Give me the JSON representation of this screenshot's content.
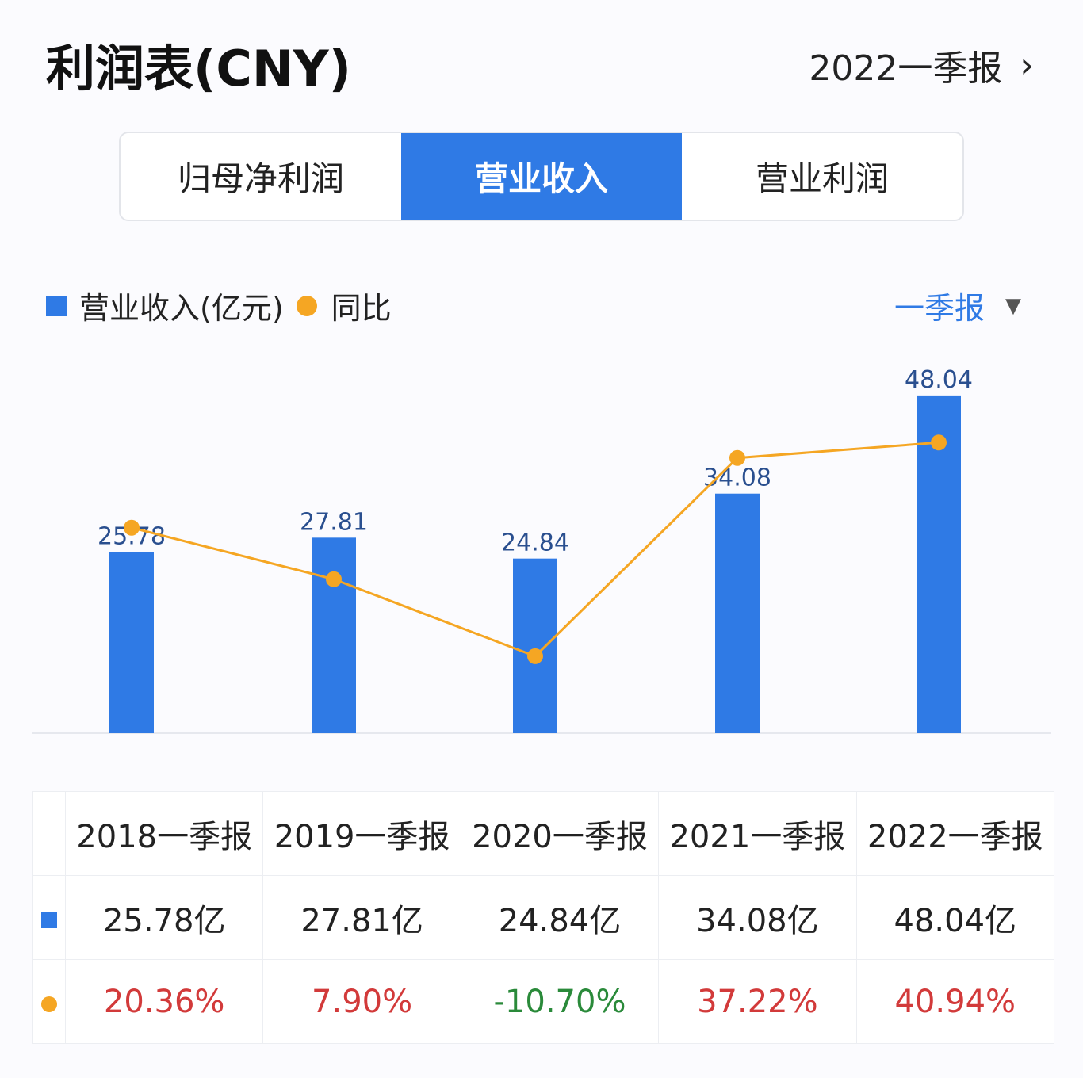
{
  "header": {
    "title": "利润表(CNY)",
    "period": "2022一季报",
    "chevron": "›"
  },
  "tabs": [
    {
      "label": "归母净利润",
      "active": false
    },
    {
      "label": "营业收入",
      "active": true
    },
    {
      "label": "营业利润",
      "active": false
    }
  ],
  "legend": {
    "bar_label": "营业收入(亿元)",
    "line_label": "同比"
  },
  "period_select": {
    "value": "一季报",
    "arrow": "▼"
  },
  "colors": {
    "bar": "#2f7ae5",
    "line": "#f5a623",
    "positive": "#d23a3a",
    "negative": "#2a8a3a"
  },
  "chart_data": {
    "type": "bar+line",
    "categories": [
      "2018一季报",
      "2019一季报",
      "2020一季报",
      "2021一季报",
      "2022一季报"
    ],
    "series": [
      {
        "name": "营业收入(亿元)",
        "type": "bar",
        "values": [
          25.78,
          27.81,
          24.84,
          34.08,
          48.04
        ],
        "data_labels": [
          "25.78",
          "27.81",
          "24.84",
          "34.08",
          "48.04"
        ]
      },
      {
        "name": "同比",
        "type": "line",
        "values": [
          20.36,
          7.9,
          -10.7,
          37.22,
          40.94
        ]
      }
    ],
    "grid": false
  },
  "table": {
    "headers": [
      "2018一季报",
      "2019一季报",
      "2020一季报",
      "2021一季报",
      "2022一季报"
    ],
    "revenue": [
      "25.78亿",
      "27.81亿",
      "24.84亿",
      "34.08亿",
      "48.04亿"
    ],
    "yoy": [
      "20.36%",
      "7.90%",
      "-10.70%",
      "37.22%",
      "40.94%"
    ]
  }
}
